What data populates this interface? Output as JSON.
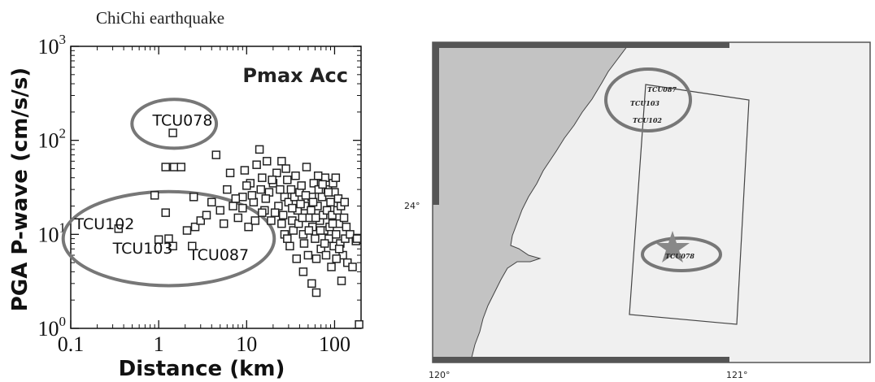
{
  "figure_title": "ChiChi earthquake",
  "chart_data": {
    "type": "scatter",
    "title": "",
    "panel_label": "Pmax Acc",
    "xlabel": "Distance (km)",
    "ylabel": "PGA P-wave (cm/s/s)",
    "xscale": "log",
    "yscale": "log",
    "xlim": [
      0.1,
      200
    ],
    "ylim": [
      1,
      1000
    ],
    "x_ticks": [
      {
        "value": 0.1,
        "label": "0.1"
      },
      {
        "value": 1,
        "label": "1"
      },
      {
        "value": 10,
        "label": "10"
      },
      {
        "value": 100,
        "label": "100"
      }
    ],
    "y_ticks": [
      {
        "value": 1,
        "base": "10",
        "exp": "0"
      },
      {
        "value": 10,
        "base": "10",
        "exp": "1"
      },
      {
        "value": 100,
        "base": "10",
        "exp": "2"
      },
      {
        "value": 1000,
        "base": "10",
        "exp": "3"
      }
    ],
    "marker": "open-square",
    "grid": false,
    "annotations": [
      {
        "text": "TCU078",
        "x": 0.85,
        "y": 165
      },
      {
        "text": "TCU102",
        "x": 0.11,
        "y": 13
      },
      {
        "text": "TCU103",
        "x": 0.3,
        "y": 7.2
      },
      {
        "text": "TCU087",
        "x": 2.2,
        "y": 6.1
      }
    ],
    "ellipses": [
      {
        "cx": 1.5,
        "cy": 150,
        "rx_decades": 0.48,
        "ry_decades": 0.26
      },
      {
        "cx": 1.3,
        "cy": 9,
        "rx_decades": 1.2,
        "ry_decades": 0.5
      }
    ],
    "points": [
      [
        1.45,
        120
      ],
      [
        1.45,
        7.5
      ],
      [
        1.3,
        9
      ],
      [
        1.2,
        52
      ],
      [
        1.5,
        52
      ],
      [
        1.8,
        52
      ],
      [
        0.9,
        26
      ],
      [
        1.2,
        17
      ],
      [
        1.0,
        8.8
      ],
      [
        0.35,
        11.5
      ],
      [
        2.6,
        12
      ],
      [
        2.4,
        7.5
      ],
      [
        2.5,
        25
      ],
      [
        2.1,
        11
      ],
      [
        4.5,
        70
      ],
      [
        3.0,
        14
      ],
      [
        3.5,
        16
      ],
      [
        4.0,
        22
      ],
      [
        5.0,
        18
      ],
      [
        6.0,
        30
      ],
      [
        6.5,
        45
      ],
      [
        7.0,
        20
      ],
      [
        8.0,
        15
      ],
      [
        9.0,
        25
      ],
      [
        9.5,
        48
      ],
      [
        10.5,
        12
      ],
      [
        11,
        35
      ],
      [
        12,
        22
      ],
      [
        13,
        55
      ],
      [
        14,
        80
      ],
      [
        15,
        40
      ],
      [
        16,
        18
      ],
      [
        17,
        60
      ],
      [
        18,
        28
      ],
      [
        19,
        14
      ],
      [
        20,
        35
      ],
      [
        22,
        45
      ],
      [
        23,
        20
      ],
      [
        24,
        30
      ],
      [
        25,
        60
      ],
      [
        26,
        16
      ],
      [
        27,
        25
      ],
      [
        28,
        50
      ],
      [
        29,
        38
      ],
      [
        30,
        22
      ],
      [
        32,
        30
      ],
      [
        33,
        14
      ],
      [
        34,
        11
      ],
      [
        35,
        25
      ],
      [
        36,
        42
      ],
      [
        38,
        18
      ],
      [
        40,
        28
      ],
      [
        42,
        33
      ],
      [
        44,
        10
      ],
      [
        45,
        8
      ],
      [
        46,
        20
      ],
      [
        48,
        52
      ],
      [
        50,
        6
      ],
      [
        52,
        15
      ],
      [
        55,
        25
      ],
      [
        56,
        12
      ],
      [
        58,
        35
      ],
      [
        60,
        9
      ],
      [
        62,
        5.5
      ],
      [
        64,
        20
      ],
      [
        66,
        30
      ],
      [
        68,
        14
      ],
      [
        70,
        7
      ],
      [
        72,
        25
      ],
      [
        74,
        16
      ],
      [
        76,
        11
      ],
      [
        78,
        40
      ],
      [
        80,
        6
      ],
      [
        82,
        18
      ],
      [
        84,
        30
      ],
      [
        86,
        9
      ],
      [
        88,
        12
      ],
      [
        90,
        22
      ],
      [
        92,
        4.5
      ],
      [
        94,
        16
      ],
      [
        96,
        35
      ],
      [
        98,
        7.5
      ],
      [
        100,
        28
      ],
      [
        104,
        10
      ],
      [
        108,
        18
      ],
      [
        112,
        13
      ],
      [
        116,
        8
      ],
      [
        120,
        3.2
      ],
      [
        124,
        6
      ],
      [
        128,
        15
      ],
      [
        132,
        9
      ],
      [
        136,
        12
      ],
      [
        140,
        5
      ],
      [
        150,
        10
      ],
      [
        160,
        4.5
      ],
      [
        175,
        8.5
      ],
      [
        180,
        9
      ],
      [
        190,
        1.1
      ],
      [
        62,
        2.4
      ],
      [
        55,
        3.0
      ],
      [
        44,
        4.0
      ],
      [
        37,
        5.5
      ],
      [
        31,
        7.5
      ],
      [
        27,
        10
      ],
      [
        21,
        17
      ],
      [
        19.5,
        38
      ],
      [
        16.5,
        24
      ],
      [
        14.5,
        30
      ],
      [
        11.5,
        26
      ],
      [
        10,
        33
      ],
      [
        9,
        19
      ],
      [
        7.5,
        24
      ],
      [
        5.5,
        13
      ],
      [
        85,
        28
      ],
      [
        95,
        13
      ],
      [
        103,
        40
      ],
      [
        110,
        24
      ],
      [
        118,
        20
      ],
      [
        130,
        22
      ],
      [
        65,
        42
      ],
      [
        73,
        34
      ],
      [
        54,
        18
      ],
      [
        47,
        26
      ],
      [
        41,
        21
      ],
      [
        39,
        13
      ],
      [
        33,
        19
      ],
      [
        29,
        9
      ],
      [
        25,
        13
      ],
      [
        15,
        17
      ],
      [
        12.5,
        14
      ],
      [
        105,
        5.5
      ],
      [
        113,
        7
      ],
      [
        77,
        8
      ],
      [
        69,
        11
      ],
      [
        61,
        15
      ],
      [
        57,
        22
      ],
      [
        51,
        11
      ],
      [
        43,
        15
      ]
    ]
  },
  "map": {
    "lat_label": "24°",
    "lon_labels": [
      "120°",
      "121°"
    ],
    "stations": [
      "TCU087",
      "TCU103",
      "TCU102",
      "TCU078"
    ],
    "colors": {
      "land": "#f0f0f0",
      "sea": "#c3c3c3",
      "border": "#555555",
      "ellipse": "#777777",
      "star": "#888888"
    }
  }
}
